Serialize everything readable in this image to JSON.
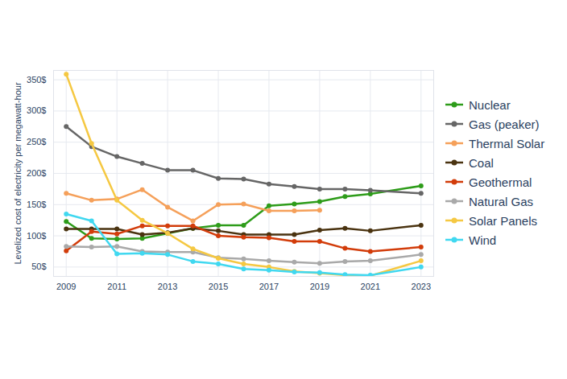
{
  "chart_data": {
    "type": "line",
    "y_label": "Levelized cost of electricity per megawatt-hour",
    "x": [
      2009,
      2010,
      2011,
      2012,
      2013,
      2014,
      2015,
      2016,
      2017,
      2018,
      2019,
      2020,
      2021,
      2023
    ],
    "xlim": [
      2008.5,
      2023.5
    ],
    "xticks": [
      2009,
      2011,
      2013,
      2015,
      2017,
      2019,
      2021,
      2023
    ],
    "ylim": [
      35,
      365
    ],
    "yticks": [
      {
        "value": 50,
        "label": "50$"
      },
      {
        "value": 100,
        "label": "100$"
      },
      {
        "value": 150,
        "label": "150$"
      },
      {
        "value": 200,
        "label": "200$"
      },
      {
        "value": 250,
        "label": "250$"
      },
      {
        "value": 300,
        "label": "300$"
      },
      {
        "value": 350,
        "label": "350$"
      }
    ],
    "grid": true,
    "legend": "right",
    "marker": "circle",
    "line_style": "solid",
    "series": [
      {
        "name": "Nuclear",
        "color": "#2e9c1a",
        "values": [
          123,
          96,
          95,
          96,
          104,
          112,
          117,
          117,
          148,
          151,
          155,
          163,
          167,
          180
        ]
      },
      {
        "name": "Gas (peaker)",
        "color": "#666666",
        "values": [
          275,
          243,
          227,
          216,
          205,
          205,
          192,
          191,
          183,
          179,
          175,
          175,
          173,
          168
        ]
      },
      {
        "name": "Thermal Solar",
        "color": "#f5a05a",
        "values": [
          168,
          157,
          159,
          174,
          146,
          124,
          150,
          151,
          140,
          140,
          141,
          null,
          null,
          null
        ]
      },
      {
        "name": "Coal",
        "color": "#4a3310",
        "values": [
          111,
          111,
          111,
          102,
          105,
          112,
          108,
          102,
          102,
          102,
          109,
          112,
          108,
          117
        ]
      },
      {
        "name": "Geothermal",
        "color": "#d23c0a",
        "values": [
          76,
          107,
          103,
          116,
          116,
          116,
          100,
          98,
          97,
          91,
          91,
          80,
          75,
          82
        ]
      },
      {
        "name": "Natural Gas",
        "color": "#a9a9a9",
        "values": [
          83,
          82,
          83,
          75,
          74,
          74,
          65,
          63,
          60,
          58,
          56,
          59,
          60,
          70
        ]
      },
      {
        "name": "Solar Panels",
        "color": "#f5c842",
        "values": [
          359,
          248,
          157,
          125,
          104,
          79,
          64,
          55,
          50,
          43,
          40,
          37,
          36,
          60
        ]
      },
      {
        "name": "Wind",
        "color": "#40d8f0",
        "values": [
          135,
          124,
          71,
          72,
          70,
          59,
          55,
          47,
          45,
          42,
          41,
          38,
          37,
          50
        ]
      }
    ]
  }
}
